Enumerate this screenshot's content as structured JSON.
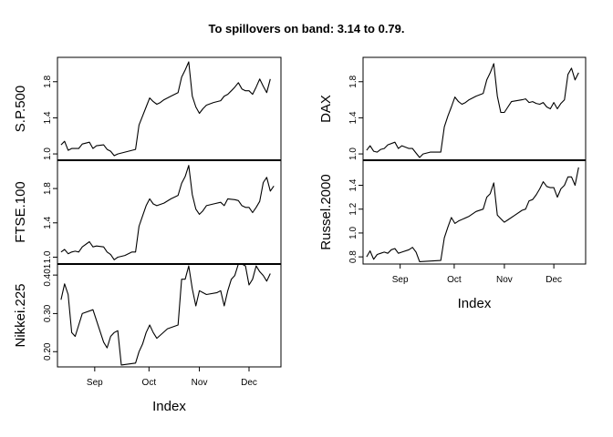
{
  "figure": {
    "title": "To spillovers on band: 3.14 to 0.79."
  },
  "chart_data": [
    {
      "type": "line",
      "ylabel": "S.P.500",
      "xlabel": "",
      "ylim": [
        0.93,
        2.07
      ],
      "yticks": [
        1.0,
        1.4,
        1.8
      ],
      "ytick_labels": [
        "1.0",
        "1.4",
        "1.8"
      ],
      "x_ticks": [
        "Sep",
        "Oct",
        "Nov",
        "Dec"
      ],
      "show_x_axis": false,
      "series": [
        {
          "values": [
            [
              0,
              1.1
            ],
            [
              1,
              1.14
            ],
            [
              2,
              1.04
            ],
            [
              3,
              1.06
            ],
            [
              5,
              1.06
            ],
            [
              6,
              1.11
            ],
            [
              8,
              1.13
            ],
            [
              9,
              1.06
            ],
            [
              10,
              1.09
            ],
            [
              12,
              1.1
            ],
            [
              13,
              1.05
            ],
            [
              14,
              1.03
            ],
            [
              15,
              0.98
            ],
            [
              16,
              1.0
            ],
            [
              18,
              1.02
            ],
            [
              21,
              1.05
            ],
            [
              22,
              1.32
            ],
            [
              23,
              1.42
            ],
            [
              24,
              1.52
            ],
            [
              25,
              1.62
            ],
            [
              26,
              1.58
            ],
            [
              27,
              1.55
            ],
            [
              28,
              1.57
            ],
            [
              29,
              1.6
            ],
            [
              31,
              1.64
            ],
            [
              33,
              1.68
            ],
            [
              34,
              1.85
            ],
            [
              35,
              1.93
            ],
            [
              36,
              2.02
            ],
            [
              37,
              1.64
            ],
            [
              38,
              1.52
            ],
            [
              39,
              1.45
            ],
            [
              40,
              1.5
            ],
            [
              41,
              1.54
            ],
            [
              43,
              1.57
            ],
            [
              45,
              1.59
            ],
            [
              46,
              1.64
            ],
            [
              47,
              1.66
            ],
            [
              48,
              1.7
            ],
            [
              49,
              1.74
            ],
            [
              50,
              1.79
            ],
            [
              51,
              1.72
            ],
            [
              52,
              1.7
            ],
            [
              53,
              1.7
            ],
            [
              54,
              1.66
            ],
            [
              55,
              1.74
            ],
            [
              56,
              1.83
            ],
            [
              57,
              1.75
            ],
            [
              58,
              1.68
            ],
            [
              59,
              1.83
            ]
          ]
        }
      ]
    },
    {
      "type": "line",
      "ylabel": "FTSE.100",
      "xlabel": "",
      "ylim": [
        0.92,
        2.13
      ],
      "yticks": [
        1.0,
        1.4,
        1.8
      ],
      "ytick_labels": [
        "1.0",
        "1.4",
        "1.8"
      ],
      "x_ticks": [
        "Sep",
        "Oct",
        "Nov",
        "Dec"
      ],
      "show_x_axis": false,
      "series": [
        {
          "values": [
            [
              0,
              1.06
            ],
            [
              1,
              1.09
            ],
            [
              2,
              1.04
            ],
            [
              3,
              1.06
            ],
            [
              4,
              1.07
            ],
            [
              5,
              1.06
            ],
            [
              6,
              1.12
            ],
            [
              8,
              1.18
            ],
            [
              9,
              1.12
            ],
            [
              10,
              1.13
            ],
            [
              12,
              1.12
            ],
            [
              13,
              1.06
            ],
            [
              14,
              1.03
            ],
            [
              15,
              0.97
            ],
            [
              16,
              1.0
            ],
            [
              18,
              1.02
            ],
            [
              20,
              1.06
            ],
            [
              21,
              1.06
            ],
            [
              22,
              1.36
            ],
            [
              23,
              1.48
            ],
            [
              24,
              1.6
            ],
            [
              25,
              1.68
            ],
            [
              26,
              1.62
            ],
            [
              27,
              1.6
            ],
            [
              29,
              1.63
            ],
            [
              31,
              1.68
            ],
            [
              33,
              1.72
            ],
            [
              34,
              1.86
            ],
            [
              35,
              1.94
            ],
            [
              36,
              2.07
            ],
            [
              37,
              1.73
            ],
            [
              38,
              1.56
            ],
            [
              39,
              1.5
            ],
            [
              40,
              1.54
            ],
            [
              41,
              1.6
            ],
            [
              43,
              1.62
            ],
            [
              45,
              1.64
            ],
            [
              46,
              1.6
            ],
            [
              47,
              1.68
            ],
            [
              49,
              1.67
            ],
            [
              50,
              1.66
            ],
            [
              51,
              1.6
            ],
            [
              52,
              1.58
            ],
            [
              53,
              1.58
            ],
            [
              54,
              1.52
            ],
            [
              55,
              1.58
            ],
            [
              56,
              1.65
            ],
            [
              57,
              1.87
            ],
            [
              58,
              1.93
            ],
            [
              59,
              1.77
            ],
            [
              60,
              1.83
            ]
          ]
        }
      ]
    },
    {
      "type": "line",
      "ylabel": "Nikkei.225",
      "xlabel": "Index",
      "ylim": [
        0.16,
        0.43
      ],
      "yticks": [
        0.2,
        0.3,
        0.401
      ],
      "ytick_labels": [
        "0.20",
        "0.30",
        "0.401"
      ],
      "x_ticks": [
        "Sep",
        "Oct",
        "Nov",
        "Dec"
      ],
      "show_x_axis": true,
      "series": [
        {
          "values": [
            [
              0,
              0.336
            ],
            [
              1,
              0.378
            ],
            [
              2,
              0.35
            ],
            [
              3,
              0.25
            ],
            [
              4,
              0.24
            ],
            [
              5,
              0.27
            ],
            [
              6,
              0.3
            ],
            [
              9,
              0.31
            ],
            [
              12,
              0.225
            ],
            [
              13,
              0.21
            ],
            [
              14,
              0.24
            ],
            [
              15,
              0.25
            ],
            [
              16,
              0.255
            ],
            [
              17,
              0.165
            ],
            [
              21,
              0.17
            ],
            [
              22,
              0.2
            ],
            [
              23,
              0.22
            ],
            [
              24,
              0.25
            ],
            [
              25,
              0.27
            ],
            [
              26,
              0.25
            ],
            [
              27,
              0.235
            ],
            [
              30,
              0.26
            ],
            [
              33,
              0.27
            ],
            [
              34,
              0.39
            ],
            [
              35,
              0.39
            ],
            [
              36,
              0.425
            ],
            [
              37,
              0.365
            ],
            [
              38,
              0.32
            ],
            [
              39,
              0.36
            ],
            [
              40,
              0.355
            ],
            [
              41,
              0.35
            ],
            [
              44,
              0.355
            ],
            [
              45,
              0.36
            ],
            [
              46,
              0.32
            ],
            [
              47,
              0.36
            ],
            [
              48,
              0.39
            ],
            [
              49,
              0.4
            ],
            [
              50,
              0.43
            ],
            [
              51,
              0.43
            ],
            [
              52,
              0.425
            ],
            [
              53,
              0.375
            ],
            [
              54,
              0.39
            ],
            [
              55,
              0.425
            ],
            [
              56,
              0.41
            ],
            [
              57,
              0.4
            ],
            [
              58,
              0.385
            ],
            [
              59,
              0.405
            ]
          ]
        }
      ]
    },
    {
      "type": "line",
      "ylabel": "DAX",
      "xlabel": "",
      "ylim": [
        0.93,
        2.07
      ],
      "yticks": [
        1.0,
        1.4,
        1.8
      ],
      "ytick_labels": [
        "1.0",
        "1.4",
        "1.8"
      ],
      "x_ticks": [
        "Sep",
        "Oct",
        "Nov",
        "Dec"
      ],
      "show_x_axis": false,
      "series": [
        {
          "values": [
            [
              0,
              1.04
            ],
            [
              1,
              1.09
            ],
            [
              2,
              1.03
            ],
            [
              3,
              1.02
            ],
            [
              4,
              1.05
            ],
            [
              5,
              1.06
            ],
            [
              6,
              1.1
            ],
            [
              8,
              1.13
            ],
            [
              9,
              1.06
            ],
            [
              10,
              1.09
            ],
            [
              12,
              1.06
            ],
            [
              13,
              1.06
            ],
            [
              14,
              1.01
            ],
            [
              15,
              0.96
            ],
            [
              16,
              1.0
            ],
            [
              18,
              1.02
            ],
            [
              21,
              1.02
            ],
            [
              22,
              1.3
            ],
            [
              23,
              1.42
            ],
            [
              24,
              1.52
            ],
            [
              25,
              1.63
            ],
            [
              26,
              1.58
            ],
            [
              27,
              1.55
            ],
            [
              28,
              1.57
            ],
            [
              29,
              1.6
            ],
            [
              31,
              1.64
            ],
            [
              33,
              1.67
            ],
            [
              34,
              1.82
            ],
            [
              35,
              1.9
            ],
            [
              36,
              2.0
            ],
            [
              37,
              1.64
            ],
            [
              38,
              1.46
            ],
            [
              39,
              1.46
            ],
            [
              40,
              1.52
            ],
            [
              41,
              1.58
            ],
            [
              44,
              1.6
            ],
            [
              45,
              1.61
            ],
            [
              46,
              1.57
            ],
            [
              47,
              1.58
            ],
            [
              48,
              1.56
            ],
            [
              49,
              1.55
            ],
            [
              50,
              1.57
            ],
            [
              51,
              1.52
            ],
            [
              52,
              1.5
            ],
            [
              53,
              1.57
            ],
            [
              54,
              1.5
            ],
            [
              55,
              1.56
            ],
            [
              56,
              1.6
            ],
            [
              57,
              1.88
            ],
            [
              58,
              1.95
            ],
            [
              59,
              1.82
            ],
            [
              60,
              1.9
            ]
          ]
        }
      ]
    },
    {
      "type": "line",
      "ylabel": "Russel.2000",
      "xlabel": "Index",
      "ylim": [
        0.74,
        1.61
      ],
      "yticks": [
        0.8,
        1.0,
        1.2,
        1.4
      ],
      "ytick_labels": [
        "0.8",
        "1.0",
        "1.2",
        "1.4"
      ],
      "x_ticks": [
        "Sep",
        "Oct",
        "Nov",
        "Dec"
      ],
      "show_x_axis": true,
      "series": [
        {
          "values": [
            [
              0,
              0.8
            ],
            [
              1,
              0.85
            ],
            [
              2,
              0.78
            ],
            [
              3,
              0.82
            ],
            [
              4,
              0.83
            ],
            [
              5,
              0.84
            ],
            [
              6,
              0.83
            ],
            [
              7,
              0.86
            ],
            [
              8,
              0.87
            ],
            [
              9,
              0.83
            ],
            [
              10,
              0.84
            ],
            [
              12,
              0.86
            ],
            [
              13,
              0.88
            ],
            [
              14,
              0.84
            ],
            [
              15,
              0.76
            ],
            [
              21,
              0.77
            ],
            [
              22,
              0.96
            ],
            [
              23,
              1.05
            ],
            [
              24,
              1.13
            ],
            [
              25,
              1.08
            ],
            [
              26,
              1.1
            ],
            [
              29,
              1.14
            ],
            [
              31,
              1.18
            ],
            [
              33,
              1.2
            ],
            [
              34,
              1.3
            ],
            [
              35,
              1.33
            ],
            [
              36,
              1.42
            ],
            [
              37,
              1.15
            ],
            [
              38,
              1.12
            ],
            [
              39,
              1.09
            ],
            [
              40,
              1.11
            ],
            [
              42,
              1.15
            ],
            [
              44,
              1.19
            ],
            [
              45,
              1.2
            ],
            [
              46,
              1.27
            ],
            [
              47,
              1.28
            ],
            [
              48,
              1.32
            ],
            [
              49,
              1.37
            ],
            [
              50,
              1.43
            ],
            [
              51,
              1.39
            ],
            [
              52,
              1.38
            ],
            [
              53,
              1.38
            ],
            [
              54,
              1.3
            ],
            [
              55,
              1.37
            ],
            [
              56,
              1.4
            ],
            [
              57,
              1.47
            ],
            [
              58,
              1.47
            ],
            [
              59,
              1.4
            ],
            [
              60,
              1.55
            ]
          ]
        }
      ]
    }
  ]
}
